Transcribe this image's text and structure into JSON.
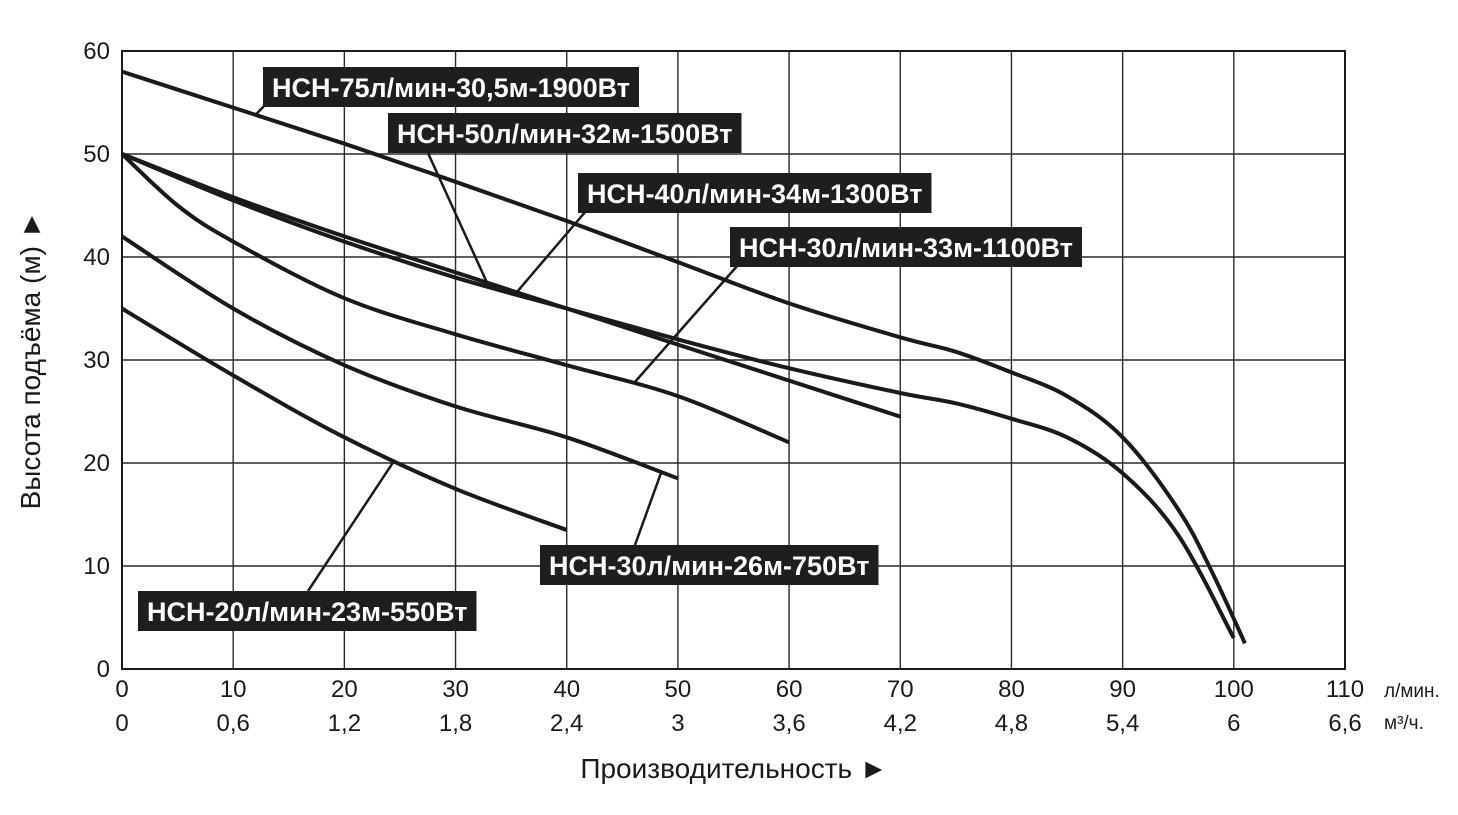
{
  "chart_data": {
    "type": "line",
    "xlabel": "Производительность ►",
    "ylabel": "Высота подъёма (м) ►",
    "xlim": [
      0,
      110
    ],
    "ylim": [
      0,
      60
    ],
    "grid": true,
    "x_ticks": [
      "0",
      "10",
      "20",
      "30",
      "40",
      "50",
      "60",
      "70",
      "80",
      "90",
      "100",
      "110"
    ],
    "x_unit": "л/мин.",
    "x2_ticks": [
      "0",
      "0,6",
      "1,2",
      "1,8",
      "2,4",
      "3",
      "3,6",
      "4,2",
      "4,8",
      "5,4",
      "6",
      "6,6"
    ],
    "x2_unit": "м³/ч.",
    "y_ticks": [
      "0",
      "10",
      "20",
      "30",
      "40",
      "50",
      "60"
    ],
    "series": [
      {
        "name": "НСН-75л/мин-30,5м-1900Вт",
        "x": [
          0,
          10,
          20,
          30,
          40,
          50,
          60,
          70,
          75,
          80,
          85,
          90,
          95,
          98,
          101
        ],
        "y": [
          58,
          54.5,
          51,
          47.3,
          43.5,
          39.5,
          35.5,
          32.2,
          30.8,
          28.8,
          26.5,
          22.5,
          15.5,
          9.5,
          2.5
        ]
      },
      {
        "name": "НСН-50л/мин-32м-1500Вт",
        "x": [
          0,
          10,
          20,
          30,
          40,
          50,
          60,
          70,
          75,
          80,
          85,
          90,
          95,
          100
        ],
        "y": [
          50,
          45.5,
          41.5,
          38,
          35,
          32,
          29.2,
          26.8,
          25.8,
          24.3,
          22.5,
          19,
          13,
          3
        ]
      },
      {
        "name": "НСН-40л/мин-34м-1300Вт",
        "x": [
          0,
          10,
          20,
          30,
          40,
          50,
          60,
          70
        ],
        "y": [
          50,
          45.8,
          42,
          38.5,
          35,
          31.5,
          28,
          24.5
        ]
      },
      {
        "name": "НСН-30л/мин-33м-1100Вт",
        "x": [
          0,
          5,
          10,
          20,
          30,
          40,
          50,
          60
        ],
        "y": [
          50,
          45,
          41.5,
          36,
          32.5,
          29.5,
          26.5,
          22
        ]
      },
      {
        "name": "НСН-30л/мин-26м-750Вт",
        "x": [
          0,
          10,
          20,
          30,
          40,
          50
        ],
        "y": [
          42,
          35,
          29.5,
          25.5,
          22.5,
          18.5
        ]
      },
      {
        "name": "НСН-20л/мин-23м-550Вт",
        "x": [
          0,
          10,
          20,
          30,
          40
        ],
        "y": [
          35,
          28.5,
          22.5,
          17.5,
          13.5
        ]
      }
    ],
    "labels": [
      {
        "text": "НСН-75л/мин-30,5м-1900Вт",
        "series": 0,
        "point_x": 12
      },
      {
        "text": "НСН-50л/мин-32м-1500Вт",
        "series": 1,
        "point_x": 33
      },
      {
        "text": "НСН-40л/мин-34м-1300Вт",
        "series": 2,
        "point_x": 35.5
      },
      {
        "text": "НСН-30л/мин-33м-1100Вт",
        "series": 3,
        "point_x": 46
      },
      {
        "text": "НСН-30л/мин-26м-750Вт",
        "series": 4,
        "point_x": 48.5
      },
      {
        "text": "НСН-20л/мин-23м-550Вт",
        "series": 5,
        "point_x": 24.5
      }
    ]
  }
}
